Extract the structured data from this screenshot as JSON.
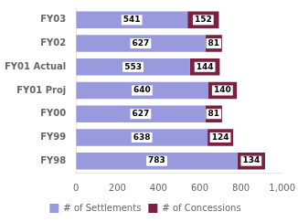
{
  "chart_data": {
    "type": "bar",
    "orientation": "horizontal",
    "stacked": true,
    "categories": [
      "FY03",
      "FY02",
      "FY01 Actual",
      "FY01 Proj",
      "FY00",
      "FY99",
      "FY98"
    ],
    "series": [
      {
        "name": "# of Settlements",
        "color": "#9999dd",
        "values": [
          541,
          627,
          553,
          640,
          627,
          638,
          783
        ]
      },
      {
        "name": "# of Concessions",
        "color": "#7a2040",
        "values": [
          152,
          81,
          144,
          140,
          81,
          124,
          134
        ]
      }
    ],
    "xlim": [
      0,
      1000
    ],
    "xticks": [
      0,
      200,
      400,
      600,
      800,
      1000
    ],
    "grid": false,
    "legend": "bottom",
    "data_labels": true
  }
}
